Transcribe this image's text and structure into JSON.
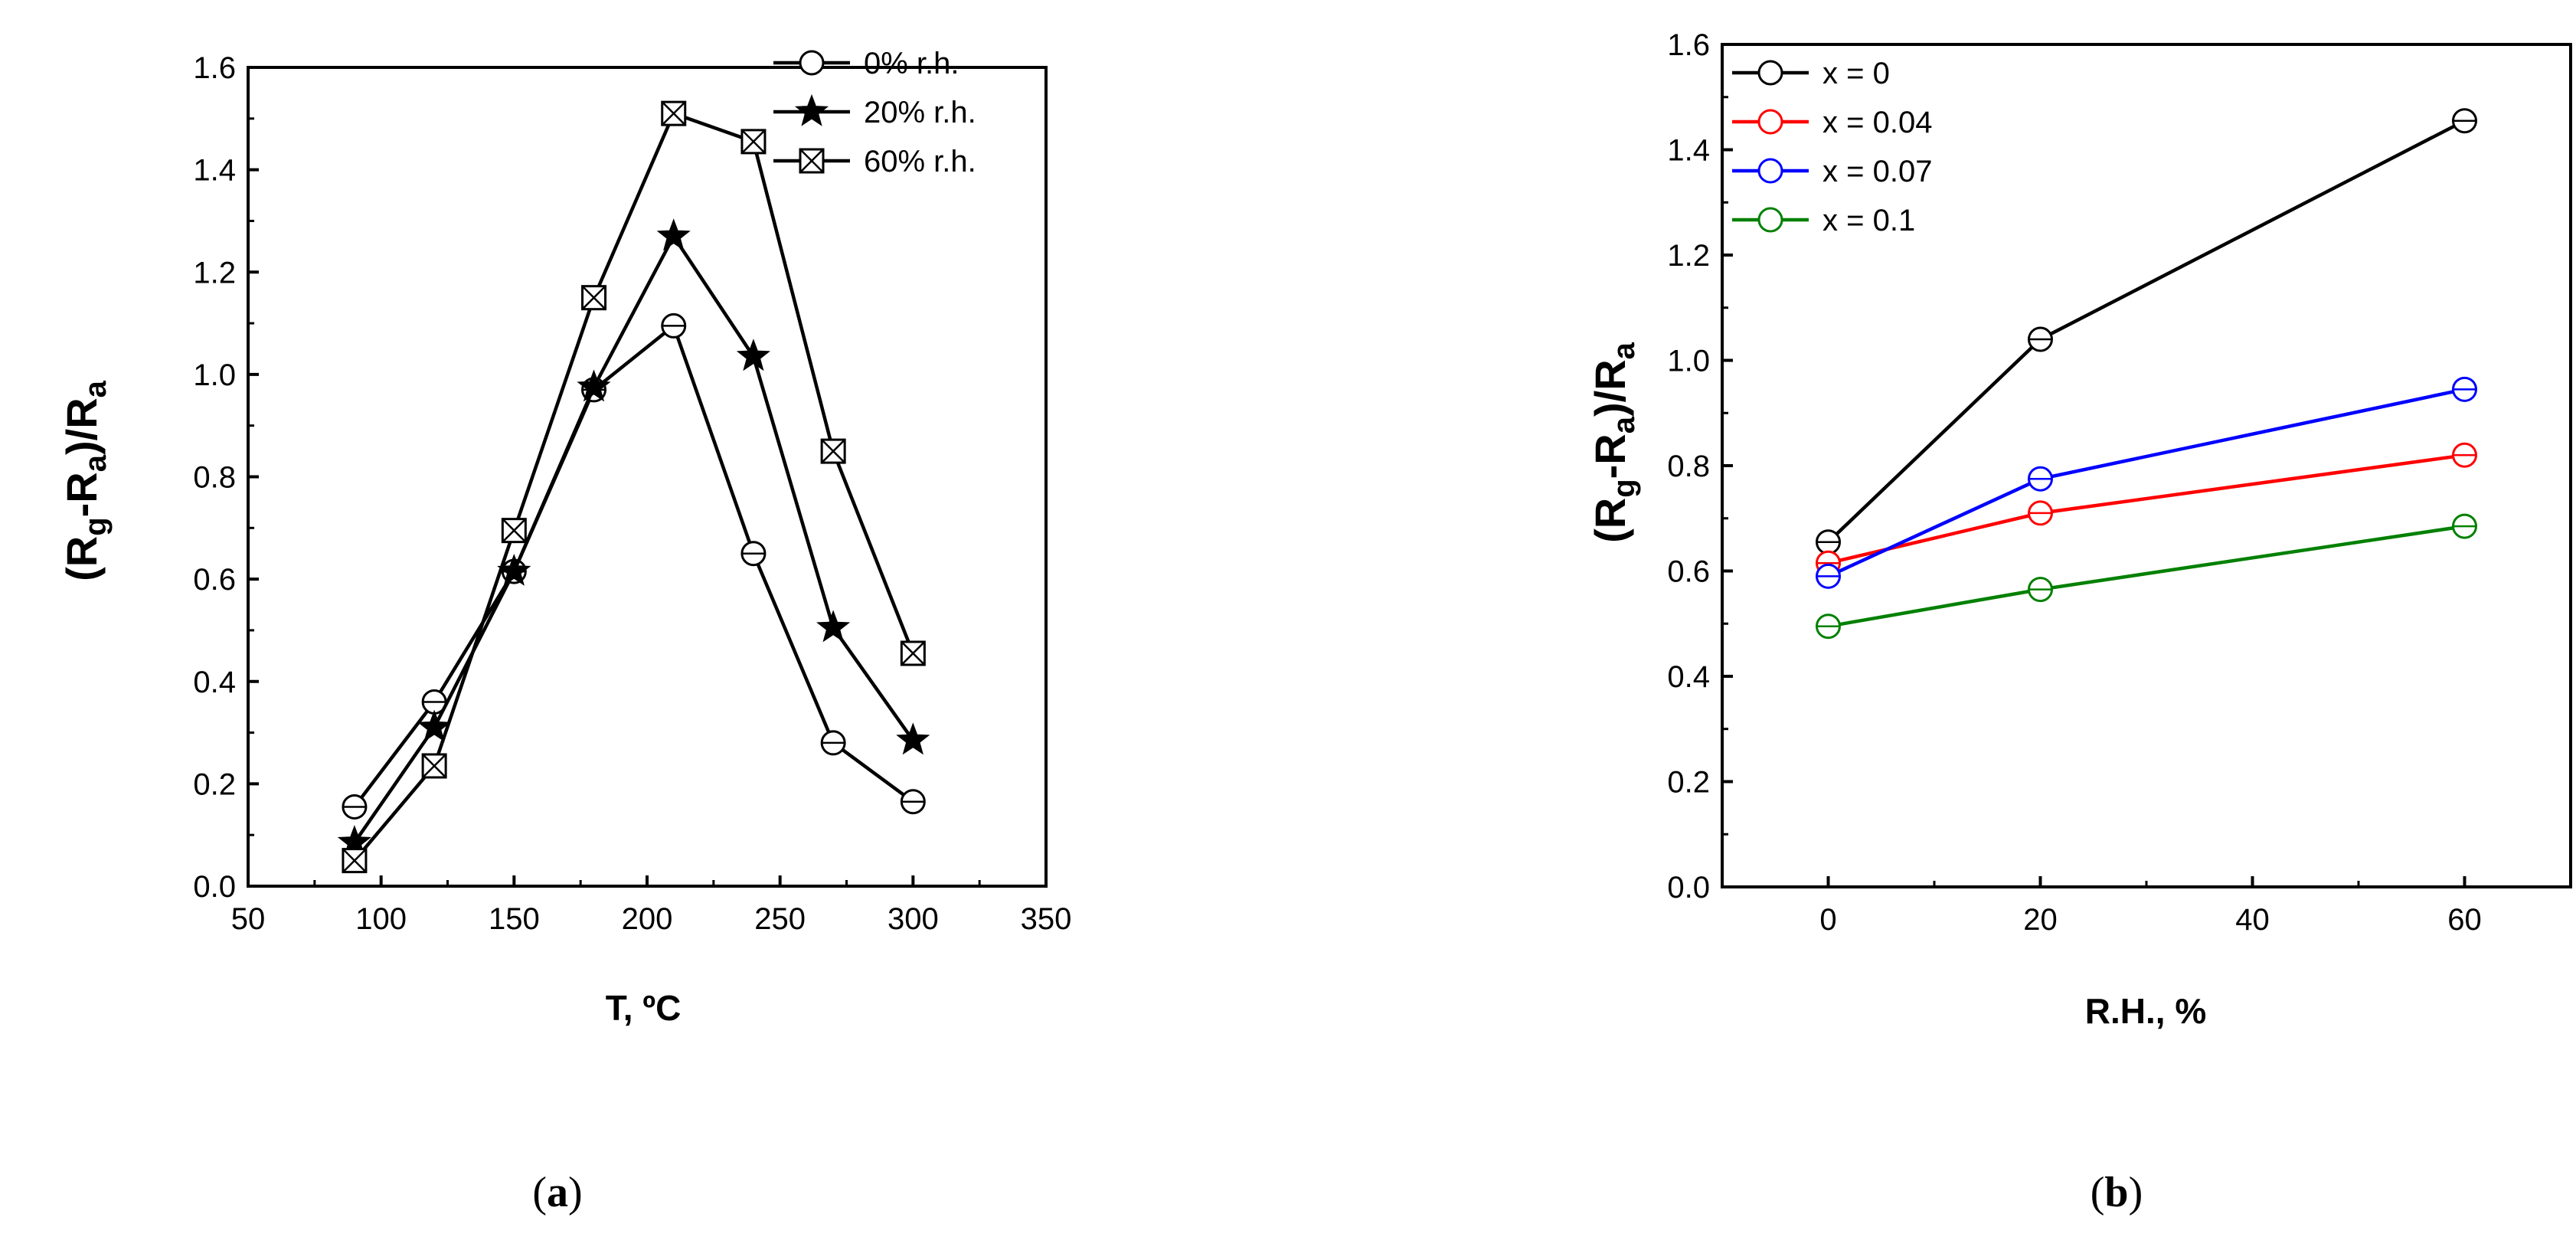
{
  "chart_data": [
    {
      "id": "a",
      "type": "line",
      "caption": {
        "open": "(",
        "letter": "a",
        "close": ")"
      },
      "xlabel": "T, ºC",
      "ylabel": {
        "open": "(R",
        "g": "g",
        "mid": "-R",
        "a1": "a",
        "slash": ")/R",
        "a2": "a"
      },
      "xlim": [
        50,
        350
      ],
      "ylim": [
        0,
        1.6
      ],
      "xticks": [
        50,
        100,
        150,
        200,
        250,
        300,
        350
      ],
      "yticks": [
        0.0,
        0.2,
        0.4,
        0.6,
        0.8,
        1.0,
        1.2,
        1.4,
        1.6
      ],
      "legend_position": "top-right",
      "series": [
        {
          "name": "0% r.h.",
          "marker": "circle",
          "color": "#000000",
          "x": [
            90,
            120,
            150,
            180,
            210,
            240,
            270,
            300
          ],
          "y": [
            0.155,
            0.36,
            0.615,
            0.97,
            1.095,
            0.65,
            0.28,
            0.165
          ]
        },
        {
          "name": "20% r.h.",
          "marker": "star",
          "color": "#000000",
          "x": [
            90,
            120,
            150,
            180,
            210,
            240,
            270,
            300
          ],
          "y": [
            0.085,
            0.31,
            0.615,
            0.975,
            1.27,
            1.035,
            0.505,
            0.285
          ]
        },
        {
          "name": "60% r.h.",
          "marker": "xsquare",
          "color": "#000000",
          "x": [
            90,
            120,
            150,
            180,
            210,
            240,
            270,
            300
          ],
          "y": [
            0.05,
            0.235,
            0.695,
            1.15,
            1.51,
            1.455,
            0.85,
            0.455
          ]
        }
      ]
    },
    {
      "id": "b",
      "type": "line",
      "caption": {
        "open": "(",
        "letter": "b",
        "close": ")"
      },
      "xlabel": "R.H., %",
      "ylabel": {
        "open": "(R",
        "g": "g",
        "mid": "-R",
        "a1": "a",
        "slash": ")/R",
        "a2": "a"
      },
      "xlim": [
        -10,
        70
      ],
      "ylim": [
        0,
        1.6
      ],
      "xticks": [
        0,
        20,
        40,
        60
      ],
      "yticks": [
        0.0,
        0.2,
        0.4,
        0.6,
        0.8,
        1.0,
        1.2,
        1.4,
        1.6
      ],
      "legend_position": "top-left",
      "series": [
        {
          "name": "x = 0",
          "marker": "circle",
          "color": "#000000",
          "x": [
            0,
            20,
            60
          ],
          "y": [
            0.655,
            1.04,
            1.455
          ]
        },
        {
          "name": "x = 0.04",
          "marker": "circle",
          "color": "#ff0000",
          "x": [
            0,
            20,
            60
          ],
          "y": [
            0.615,
            0.71,
            0.82
          ]
        },
        {
          "name": "x = 0.07",
          "marker": "circle",
          "color": "#0000ff",
          "x": [
            0,
            20,
            60
          ],
          "y": [
            0.59,
            0.775,
            0.945
          ]
        },
        {
          "name": "x = 0.1",
          "marker": "circle",
          "color": "#008000",
          "x": [
            0,
            20,
            60
          ],
          "y": [
            0.495,
            0.565,
            0.685
          ]
        }
      ]
    }
  ]
}
